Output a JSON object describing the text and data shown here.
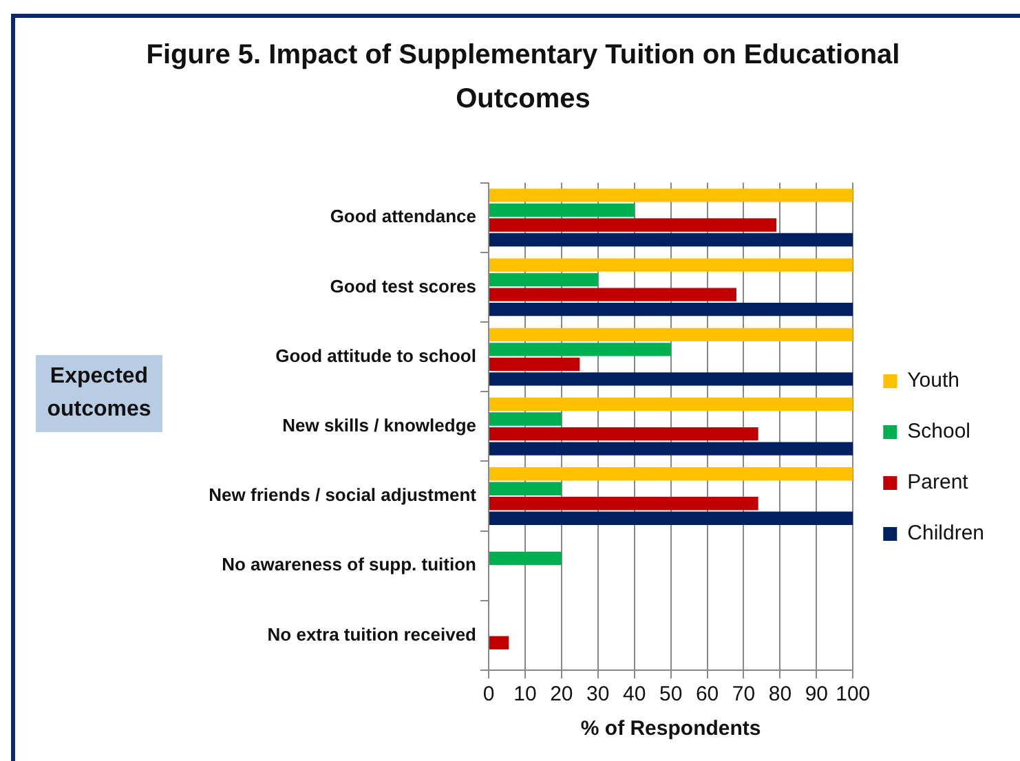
{
  "chart_data": {
    "type": "bar",
    "orientation": "horizontal",
    "title": "Figure 5. Impact of Supplementary Tuition on Educational Outcomes",
    "xlabel": "% of Respondents",
    "ylabel": "Expected outcomes",
    "categories": [
      "Good attendance",
      "Good test scores",
      "Good attitude to school",
      "New skills / knowledge",
      "New friends / social adjustment",
      "No awareness of supp. tuition",
      "No extra tuition received"
    ],
    "series": [
      {
        "name": "Youth",
        "color": "#ffc000",
        "values": [
          100,
          100,
          100,
          100,
          100,
          null,
          null
        ]
      },
      {
        "name": "School",
        "color": "#00b050",
        "values": [
          40,
          30,
          50,
          20,
          20,
          20,
          null
        ]
      },
      {
        "name": "Parent",
        "color": "#c00000",
        "values": [
          79,
          68,
          25,
          74,
          74,
          null,
          5.5
        ]
      },
      {
        "name": "Children",
        "color": "#002060",
        "values": [
          100,
          100,
          100,
          100,
          100,
          null,
          null
        ]
      }
    ],
    "xlim": [
      0,
      100
    ],
    "xticks": [
      0,
      10,
      20,
      30,
      40,
      50,
      60,
      70,
      80,
      90,
      100
    ],
    "grid": "x",
    "legend": "right"
  }
}
